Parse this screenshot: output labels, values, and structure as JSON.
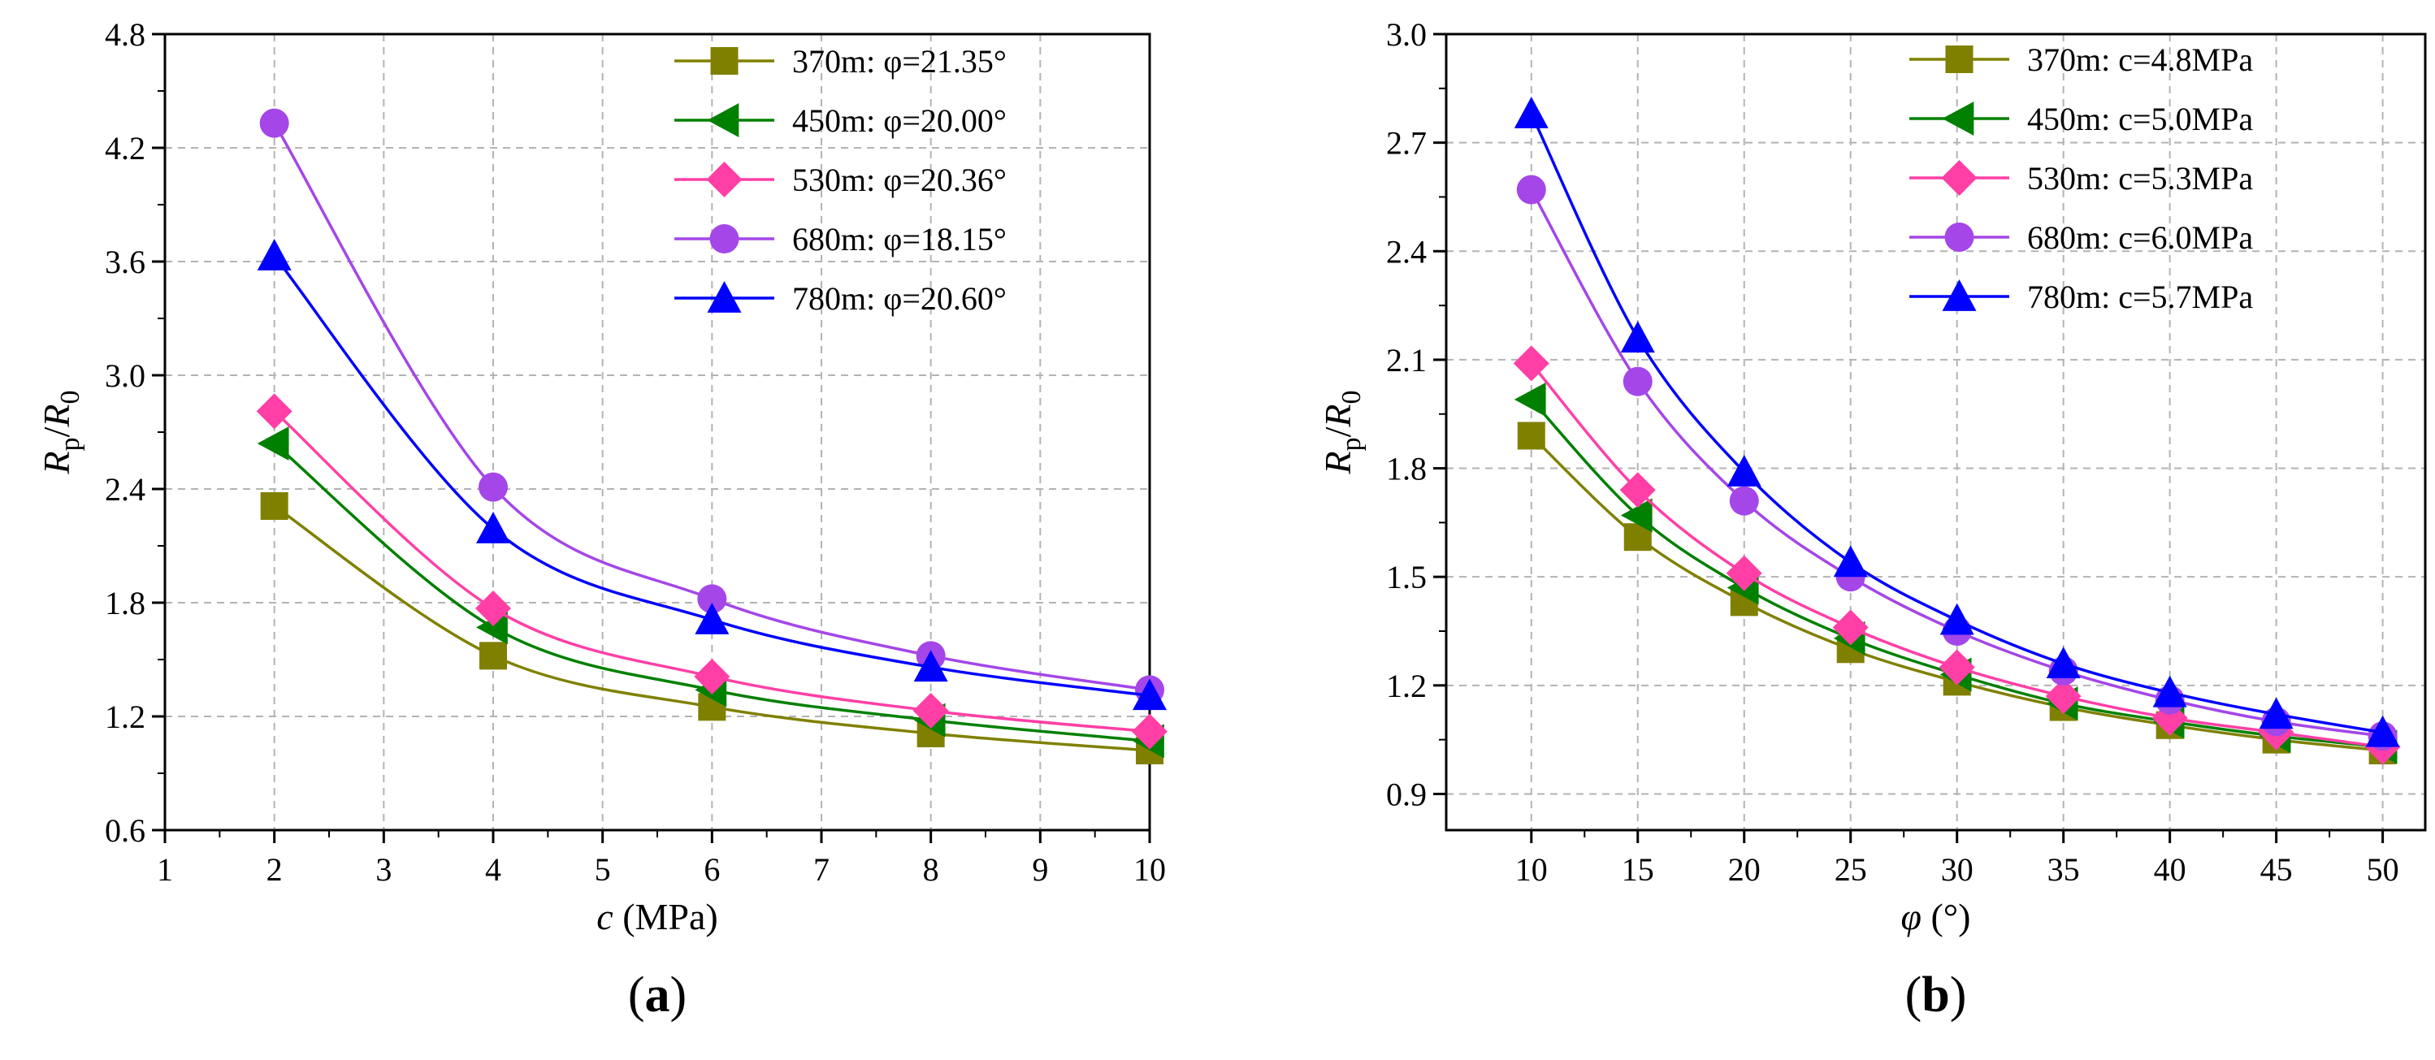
{
  "panels": [
    {
      "id": "a",
      "panel_label": "a",
      "xlabel_var": "c",
      "xlabel_unit": " (MPa)",
      "ylabel": {
        "main": "R",
        "sub1": "p",
        "slash": "/",
        "main2": "R",
        "sub2": "0"
      },
      "xticks": [
        "1",
        "2",
        "3",
        "4",
        "5",
        "6",
        "7",
        "8",
        "9",
        "10"
      ],
      "yticks": [
        "0.6",
        "1.2",
        "1.8",
        "2.4",
        "3.0",
        "3.6",
        "4.2",
        "4.8"
      ]
    },
    {
      "id": "b",
      "panel_label": "b",
      "xlabel_var": "φ",
      "xlabel_unit": " (°)",
      "ylabel": {
        "main": "R",
        "sub1": "p",
        "slash": "/",
        "main2": "R",
        "sub2": "0"
      },
      "xticks": [
        "10",
        "15",
        "20",
        "25",
        "30",
        "35",
        "40",
        "45",
        "50"
      ],
      "yticks": [
        "0.9",
        "1.2",
        "1.5",
        "1.8",
        "2.1",
        "2.4",
        "2.7",
        "3.0"
      ]
    }
  ],
  "colors": {
    "olive": "#808000",
    "green": "#008000",
    "pink": "#ff3fa6",
    "purple": "#a446e8",
    "blue": "#0000ff",
    "grid": "#b3b3b3",
    "axis": "#000000"
  },
  "chart_data": [
    {
      "type": "line",
      "panel": "a",
      "xlabel": "c (MPa)",
      "ylabel": "Rp/R0",
      "xlim": [
        1,
        10
      ],
      "ylim": [
        0.6,
        4.8
      ],
      "grid": true,
      "legend_position": "top-right",
      "x": [
        2,
        4,
        6,
        8,
        10
      ],
      "series": [
        {
          "name": "370m: φ=21.35°",
          "marker": "square",
          "color": "#808000",
          "values": [
            2.31,
            1.52,
            1.25,
            1.11,
            1.02
          ]
        },
        {
          "name": "450m: φ=20.00°",
          "marker": "triangle-left",
          "color": "#008000",
          "values": [
            2.64,
            1.67,
            1.34,
            1.18,
            1.07
          ]
        },
        {
          "name": "530m: φ=20.36°",
          "marker": "diamond",
          "color": "#ff3fa6",
          "values": [
            2.81,
            1.77,
            1.41,
            1.23,
            1.12
          ]
        },
        {
          "name": "680m: φ=18.15°",
          "marker": "circle",
          "color": "#a446e8",
          "values": [
            4.33,
            2.41,
            1.82,
            1.52,
            1.34
          ]
        },
        {
          "name": "780m: φ=20.60°",
          "marker": "triangle-up",
          "color": "#0000ff",
          "values": [
            3.63,
            2.19,
            1.71,
            1.46,
            1.31
          ]
        }
      ]
    },
    {
      "type": "line",
      "panel": "b",
      "xlabel": "φ (°)",
      "ylabel": "Rp/R0",
      "xlim": [
        6,
        52
      ],
      "ylim": [
        0.8,
        3.0
      ],
      "grid": true,
      "legend_position": "top-right",
      "x": [
        10,
        15,
        20,
        25,
        30,
        35,
        40,
        45,
        50
      ],
      "series": [
        {
          "name": "370m: c=4.8MPa",
          "marker": "square",
          "color": "#808000",
          "values": [
            1.89,
            1.61,
            1.43,
            1.3,
            1.21,
            1.14,
            1.09,
            1.05,
            1.02
          ]
        },
        {
          "name": "450m: c=5.0MPa",
          "marker": "triangle-left",
          "color": "#008000",
          "values": [
            1.99,
            1.67,
            1.47,
            1.33,
            1.23,
            1.15,
            1.1,
            1.06,
            1.03
          ]
        },
        {
          "name": "530m: c=5.3MPa",
          "marker": "diamond",
          "color": "#ff3fa6",
          "values": [
            2.09,
            1.74,
            1.51,
            1.36,
            1.25,
            1.17,
            1.11,
            1.07,
            1.03
          ]
        },
        {
          "name": "680m: c=6.0MPa",
          "marker": "circle",
          "color": "#a446e8",
          "values": [
            2.57,
            2.04,
            1.71,
            1.5,
            1.35,
            1.24,
            1.16,
            1.1,
            1.06
          ]
        },
        {
          "name": "780m: c=5.7MPa",
          "marker": "triangle-up",
          "color": "#0000ff",
          "values": [
            2.78,
            2.16,
            1.79,
            1.54,
            1.38,
            1.26,
            1.18,
            1.12,
            1.07
          ]
        }
      ]
    }
  ]
}
